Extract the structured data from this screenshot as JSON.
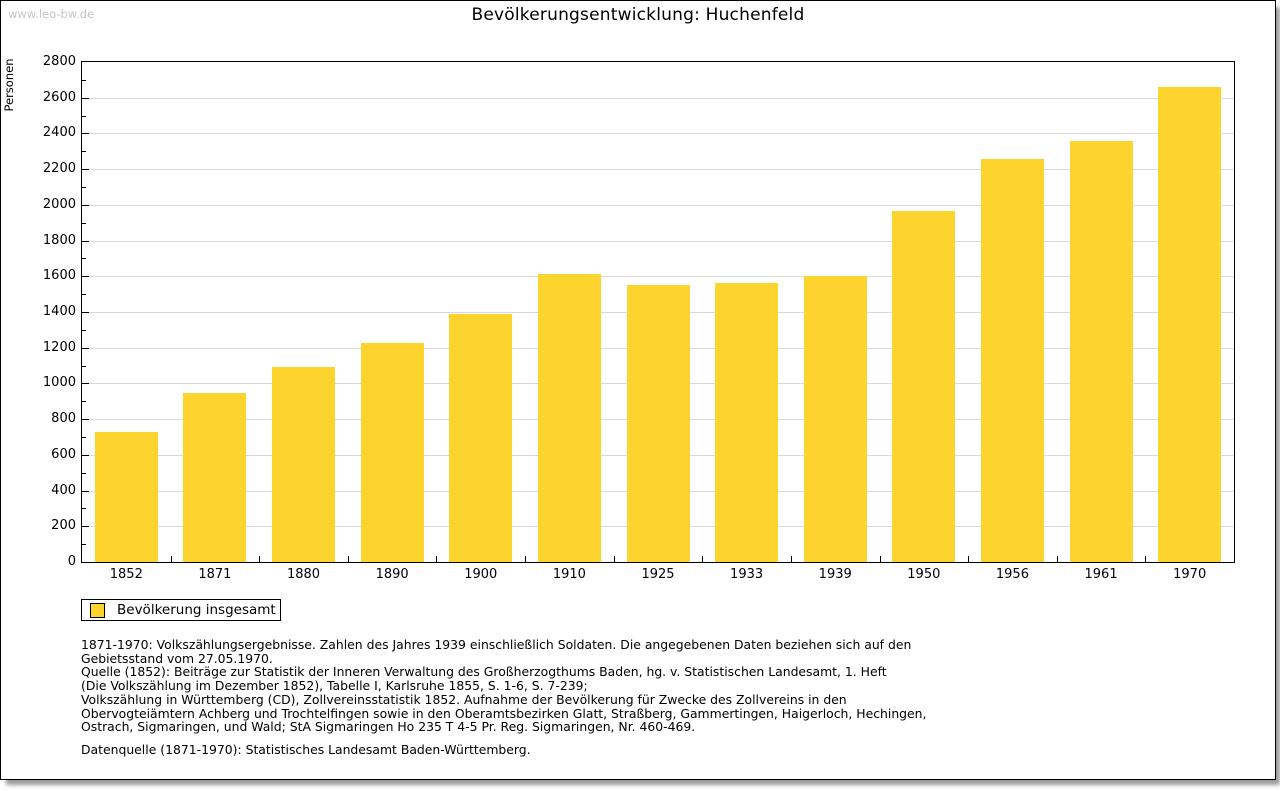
{
  "watermark": "www.leo-bw.de",
  "title": "Bevölkerungsentwicklung: Huchenfeld",
  "legend": {
    "label": "Bevölkerung insgesamt"
  },
  "colors": {
    "bar": "#fdd32d",
    "grid": "#d9d9d9",
    "watermark": "#c6c6c6",
    "axis": "#000000"
  },
  "chart_data": {
    "type": "bar",
    "title": "Bevölkerungsentwicklung: Huchenfeld",
    "xlabel": "",
    "ylabel": "Personen",
    "categories": [
      "1852",
      "1871",
      "1880",
      "1890",
      "1900",
      "1910",
      "1925",
      "1933",
      "1939",
      "1950",
      "1956",
      "1961",
      "1970"
    ],
    "values": [
      730,
      945,
      1090,
      1225,
      1390,
      1615,
      1550,
      1565,
      1600,
      1965,
      2255,
      2360,
      2660
    ],
    "series_name": "Bevölkerung insgesamt",
    "ylim": [
      0,
      2800
    ],
    "ytick_step": 200,
    "minor_tick_step": 100,
    "ytick_labels": [
      "0",
      "200",
      "400",
      "600",
      "800",
      "1000",
      "1200",
      "1400",
      "1600",
      "1800",
      "2000",
      "2200",
      "2400",
      "2600",
      "2800"
    ],
    "grid": true,
    "legend_position": "bottom-left"
  },
  "notes": {
    "lines": [
      "1871-1970: Volkszählungsergebnisse. Zahlen des Jahres 1939 einschließlich Soldaten. Die angegebenen Daten beziehen sich auf den",
      "Gebietsstand vom 27.05.1970.",
      "Quelle (1852): Beiträge zur Statistik der Inneren Verwaltung des Großherzogthums Baden, hg. v. Statistischen Landesamt, 1. Heft",
      "(Die Volkszählung im Dezember 1852), Tabelle I, Karlsruhe 1855, S. 1-6, S. 7-239;",
      "Volkszählung in Württemberg (CD), Zollvereinsstatistik 1852. Aufnahme der Bevölkerung für Zwecke des Zollvereins in den",
      "Obervogteiämtern Achberg und Trochtelfingen sowie in den Oberamtsbezirken Glatt, Straßberg, Gammertingen, Haigerloch, Hechingen,",
      "Ostrach, Sigmaringen, und Wald; StA Sigmaringen Ho 235 T 4-5 Pr. Reg. Sigmaringen, Nr. 460-469."
    ],
    "datasource": "Datenquelle (1871-1970): Statistisches Landesamt Baden-Württemberg."
  }
}
